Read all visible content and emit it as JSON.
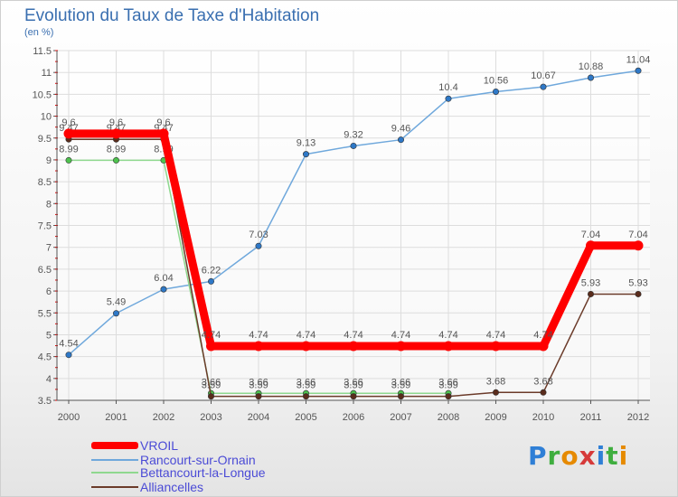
{
  "header": {
    "title": "Evolution du Taux de Taxe d'Habitation",
    "unit": "(en %)"
  },
  "brand": {
    "text": "Proxiti"
  },
  "colors": {
    "axis": "#555555",
    "grid": "#dddddd",
    "tick_red": "#e00000",
    "label": "#555555"
  },
  "chart_data": {
    "type": "line",
    "title": "Evolution du Taux de Taxe d'Habitation",
    "ylabel": "(en %)",
    "xlabel": "",
    "ylim": [
      3.5,
      11.5
    ],
    "yticks": [
      "3.5",
      "4",
      "4.5",
      "5",
      "5.5",
      "6",
      "6.5",
      "7",
      "7.5",
      "8",
      "8.5",
      "9",
      "9.5",
      "10",
      "10.5",
      "11",
      "11.5"
    ],
    "grid": true,
    "legend_position": "bottom-left",
    "x": [
      "2000",
      "2001",
      "2002",
      "2003",
      "2004",
      "2005",
      "2006",
      "2007",
      "2008",
      "2009",
      "2010",
      "2011",
      "2012"
    ],
    "series": [
      {
        "name": "Rancourt-sur-Ornain",
        "color": "#6fa8dc",
        "marker": "#2e78c7",
        "values": [
          4.54,
          5.49,
          6.04,
          6.22,
          7.03,
          9.13,
          9.32,
          9.46,
          10.4,
          10.56,
          10.67,
          10.88,
          11.04
        ],
        "labels": [
          "4.54",
          "5.49",
          "6.04",
          "6.22",
          "7.03",
          "9.13",
          "9.32",
          "9.46",
          "10.4",
          "10.56",
          "10.67",
          "10.88",
          "11.04"
        ]
      },
      {
        "name": "Bettancourt-la-Longue",
        "color": "#8fd88f",
        "marker": "#4ec24e",
        "values": [
          8.99,
          8.99,
          8.99,
          3.66,
          3.66,
          3.66,
          3.66,
          3.66,
          3.66,
          null,
          null,
          null,
          null
        ],
        "labels": [
          "8.99",
          "8.99",
          "8.99",
          "3.66",
          "3.66",
          "3.66",
          "3.66",
          "3.66",
          "3.66",
          "",
          "",
          "",
          ""
        ]
      },
      {
        "name": "Alliancelles",
        "color": "#6b3b2a",
        "marker": "#5a2c1c",
        "values": [
          9.47,
          9.47,
          9.47,
          3.59,
          3.59,
          3.59,
          3.59,
          3.59,
          3.59,
          3.68,
          3.68,
          5.93,
          5.93
        ],
        "labels": [
          "9.47",
          "9.47",
          "9.47",
          "3.59",
          "3.59",
          "3.59",
          "3.59",
          "3.59",
          "3.59",
          "3.68",
          "3.68",
          "5.93",
          "5.93"
        ]
      },
      {
        "name": "VROIL",
        "color": "#ff0000",
        "marker": "#ff0000",
        "values": [
          9.6,
          9.6,
          9.6,
          4.74,
          4.74,
          4.74,
          4.74,
          4.74,
          4.74,
          4.74,
          4.74,
          7.04,
          7.04
        ],
        "labels": [
          "9.6",
          "9.6",
          "9.6",
          "4.74",
          "4.74",
          "4.74",
          "4.74",
          "4.74",
          "4.74",
          "4.74",
          "4.74",
          "7.04",
          "7.04"
        ]
      }
    ]
  },
  "legend": [
    {
      "label": "VROIL",
      "color": "#ff0000",
      "thickness": 8
    },
    {
      "label": "Rancourt-sur-Ornain",
      "color": "#6fa8dc",
      "thickness": 2
    },
    {
      "label": "Bettancourt-la-Longue",
      "color": "#8fd88f",
      "thickness": 2
    },
    {
      "label": "Alliancelles",
      "color": "#6b3b2a",
      "thickness": 2
    }
  ]
}
